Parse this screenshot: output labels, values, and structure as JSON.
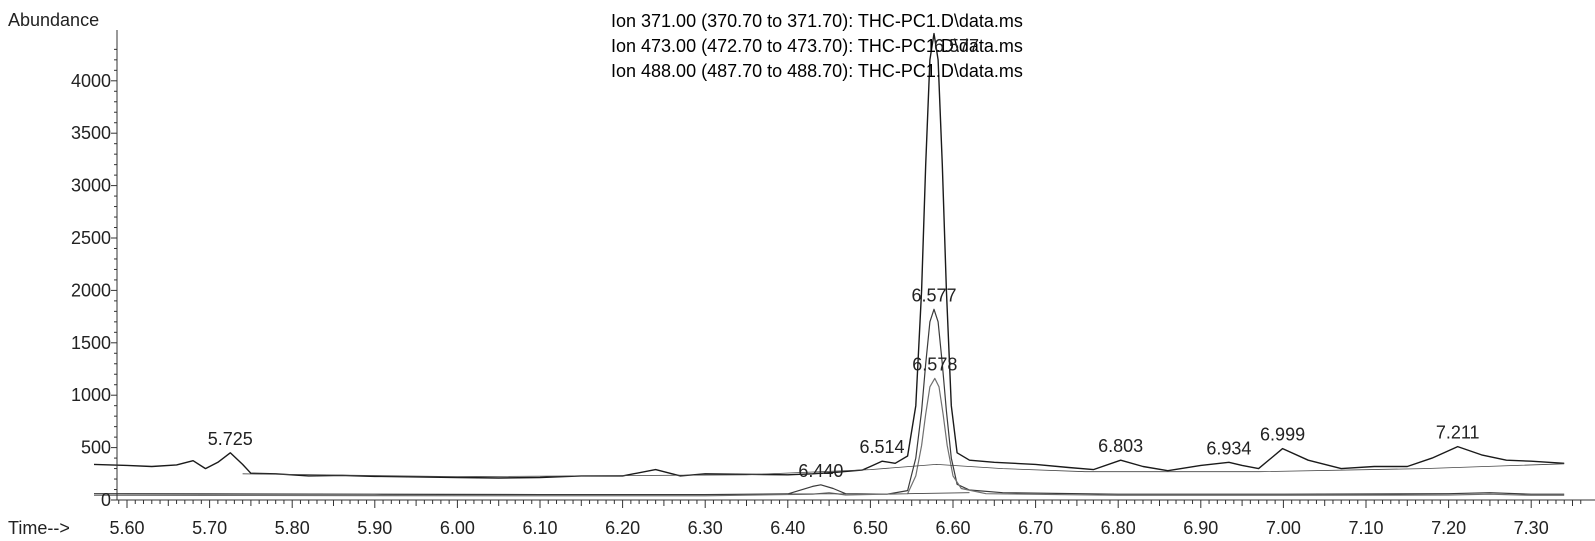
{
  "chart_data": {
    "type": "line",
    "title_lines": [
      {
        "name": "ion-371",
        "text": "Ion 371.00 (370.70 to 371.70): THC-PC1.D\\data.ms",
        "color": "#1a1a1a"
      },
      {
        "name": "ion-473",
        "text": "Ion 473.00 (472.70 to 473.70): THC-PC1.D\\data.ms",
        "color": "#3a3a3a"
      },
      {
        "name": "ion-488",
        "text": "Ion 488.00 (487.70 to 488.70): THC-PC1.D\\data.ms",
        "color": "#707070"
      }
    ],
    "overlap_label": "6.577",
    "ylabel": "Abundance",
    "xlabel": "Time-->",
    "xlim": [
      5.56,
      7.34
    ],
    "ylim": [
      0,
      4500
    ],
    "x_ticks": [
      "5.60",
      "5.70",
      "5.80",
      "5.90",
      "6.00",
      "6.10",
      "6.20",
      "6.30",
      "6.40",
      "6.50",
      "6.60",
      "6.70",
      "6.80",
      "6.90",
      "7.00",
      "7.10",
      "7.20",
      "7.30"
    ],
    "y_ticks": [
      "0",
      "500",
      "1000",
      "1500",
      "2000",
      "2500",
      "3000",
      "3500",
      "4000"
    ],
    "series": [
      {
        "name": "Ion 371.00",
        "color": "#1a1a1a",
        "points": [
          [
            5.56,
            340
          ],
          [
            5.6,
            330
          ],
          [
            5.63,
            320
          ],
          [
            5.66,
            335
          ],
          [
            5.68,
            375
          ],
          [
            5.695,
            300
          ],
          [
            5.71,
            360
          ],
          [
            5.725,
            450
          ],
          [
            5.74,
            340
          ],
          [
            5.75,
            255
          ],
          [
            5.78,
            250
          ],
          [
            5.82,
            230
          ],
          [
            5.86,
            235
          ],
          [
            5.9,
            225
          ],
          [
            5.95,
            220
          ],
          [
            6.0,
            215
          ],
          [
            6.05,
            210
          ],
          [
            6.1,
            215
          ],
          [
            6.15,
            230
          ],
          [
            6.2,
            230
          ],
          [
            6.24,
            290
          ],
          [
            6.27,
            230
          ],
          [
            6.3,
            250
          ],
          [
            6.35,
            245
          ],
          [
            6.4,
            240
          ],
          [
            6.43,
            250
          ],
          [
            6.46,
            265
          ],
          [
            6.49,
            285
          ],
          [
            6.5,
            320
          ],
          [
            6.514,
            370
          ],
          [
            6.53,
            350
          ],
          [
            6.545,
            420
          ],
          [
            6.555,
            900
          ],
          [
            6.562,
            2000
          ],
          [
            6.567,
            3200
          ],
          [
            6.572,
            4200
          ],
          [
            6.577,
            4450
          ],
          [
            6.582,
            4200
          ],
          [
            6.587,
            3200
          ],
          [
            6.592,
            2000
          ],
          [
            6.598,
            900
          ],
          [
            6.605,
            450
          ],
          [
            6.62,
            380
          ],
          [
            6.65,
            360
          ],
          [
            6.7,
            340
          ],
          [
            6.74,
            310
          ],
          [
            6.77,
            290
          ],
          [
            6.803,
            380
          ],
          [
            6.83,
            320
          ],
          [
            6.86,
            280
          ],
          [
            6.9,
            330
          ],
          [
            6.934,
            360
          ],
          [
            6.95,
            330
          ],
          [
            6.97,
            300
          ],
          [
            6.999,
            490
          ],
          [
            7.03,
            380
          ],
          [
            7.07,
            300
          ],
          [
            7.11,
            320
          ],
          [
            7.15,
            320
          ],
          [
            7.18,
            400
          ],
          [
            7.211,
            510
          ],
          [
            7.24,
            430
          ],
          [
            7.27,
            380
          ],
          [
            7.3,
            370
          ],
          [
            7.34,
            350
          ]
        ]
      },
      {
        "name": "Ion 473.00",
        "color": "#3a3a3a",
        "points": [
          [
            5.56,
            60
          ],
          [
            5.7,
            58
          ],
          [
            5.9,
            55
          ],
          [
            6.1,
            52
          ],
          [
            6.3,
            52
          ],
          [
            6.4,
            58
          ],
          [
            6.43,
            130
          ],
          [
            6.44,
            145
          ],
          [
            6.455,
            110
          ],
          [
            6.47,
            60
          ],
          [
            6.52,
            55
          ],
          [
            6.545,
            90
          ],
          [
            6.555,
            400
          ],
          [
            6.562,
            850
          ],
          [
            6.567,
            1300
          ],
          [
            6.572,
            1700
          ],
          [
            6.577,
            1820
          ],
          [
            6.582,
            1700
          ],
          [
            6.587,
            1300
          ],
          [
            6.592,
            850
          ],
          [
            6.598,
            400
          ],
          [
            6.605,
            150
          ],
          [
            6.62,
            95
          ],
          [
            6.66,
            70
          ],
          [
            6.8,
            55
          ],
          [
            7.0,
            55
          ],
          [
            7.2,
            60
          ],
          [
            7.25,
            70
          ],
          [
            7.3,
            55
          ],
          [
            7.34,
            55
          ]
        ]
      },
      {
        "name": "Ion 488.00",
        "color": "#707070",
        "points": [
          [
            5.56,
            45
          ],
          [
            5.7,
            44
          ],
          [
            5.9,
            42
          ],
          [
            6.1,
            40
          ],
          [
            6.3,
            40
          ],
          [
            6.43,
            55
          ],
          [
            6.45,
            70
          ],
          [
            6.47,
            48
          ],
          [
            6.545,
            60
          ],
          [
            6.555,
            230
          ],
          [
            6.562,
            520
          ],
          [
            6.567,
            820
          ],
          [
            6.572,
            1080
          ],
          [
            6.578,
            1160
          ],
          [
            6.583,
            1080
          ],
          [
            6.588,
            820
          ],
          [
            6.593,
            520
          ],
          [
            6.6,
            230
          ],
          [
            6.61,
            110
          ],
          [
            6.64,
            60
          ],
          [
            6.8,
            45
          ],
          [
            7.0,
            45
          ],
          [
            7.2,
            48
          ],
          [
            7.25,
            55
          ],
          [
            7.3,
            45
          ],
          [
            7.34,
            45
          ]
        ]
      }
    ],
    "baselines": [
      [
        [
          5.74,
          250
        ],
        [
          6.0,
          222
        ],
        [
          6.35,
          240
        ],
        [
          6.5,
          290
        ],
        [
          6.58,
          340
        ],
        [
          6.66,
          300
        ],
        [
          6.76,
          270
        ],
        [
          6.97,
          270
        ],
        [
          7.17,
          300
        ],
        [
          7.34,
          345
        ]
      ],
      [
        [
          6.4,
          58
        ],
        [
          6.47,
          58
        ]
      ],
      [
        [
          6.545,
          60
        ],
        [
          6.62,
          70
        ]
      ]
    ],
    "peak_labels": [
      {
        "text": "5.725",
        "x": 5.725,
        "y": 450
      },
      {
        "text": "6.440",
        "x": 6.44,
        "y": 145
      },
      {
        "text": "6.514",
        "x": 6.514,
        "y": 370
      },
      {
        "text": "6.577",
        "x": 6.577,
        "y": 1820
      },
      {
        "text": "6.578",
        "x": 6.578,
        "y": 1160
      },
      {
        "text": "6.803",
        "x": 6.803,
        "y": 380
      },
      {
        "text": "6.934",
        "x": 6.934,
        "y": 360
      },
      {
        "text": "6.999",
        "x": 6.999,
        "y": 490
      },
      {
        "text": "7.211",
        "x": 7.211,
        "y": 510
      }
    ]
  }
}
